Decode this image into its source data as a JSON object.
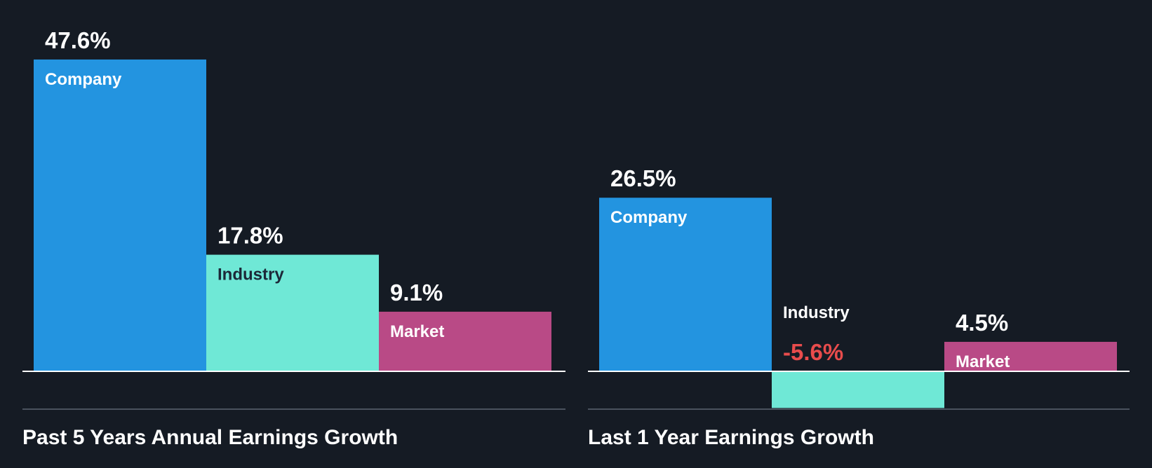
{
  "colors": {
    "background": "#151b24",
    "company": "#2394e0",
    "industry": "#6fe8d6",
    "market": "#b94a86",
    "text_light": "#ffffff",
    "text_dark": "#1c2838",
    "negative": "#e84c4c",
    "axis": "#ffffff",
    "divider": "#4a525e"
  },
  "chart_data": [
    {
      "type": "bar",
      "title": "Past 5 Years Annual Earnings Growth",
      "categories": [
        "Company",
        "Industry",
        "Market"
      ],
      "values": [
        47.6,
        17.8,
        9.1
      ],
      "value_labels": [
        "47.6%",
        "17.8%",
        "9.1%"
      ],
      "unit": "%",
      "ylim": [
        -5.6,
        47.6
      ]
    },
    {
      "type": "bar",
      "title": "Last 1 Year Earnings Growth",
      "categories": [
        "Company",
        "Industry",
        "Market"
      ],
      "values": [
        26.5,
        -5.6,
        4.5
      ],
      "value_labels": [
        "26.5%",
        "-5.6%",
        "4.5%"
      ],
      "unit": "%",
      "ylim": [
        -5.6,
        47.6
      ]
    }
  ]
}
